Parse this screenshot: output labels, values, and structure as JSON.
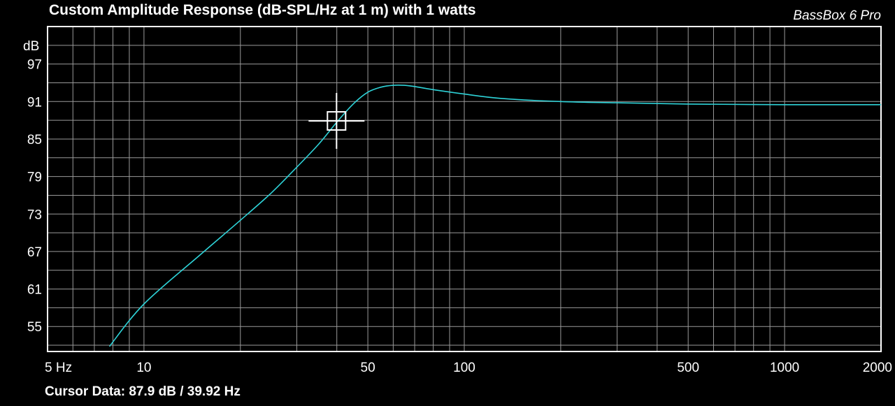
{
  "title": "Custom Amplitude Response (dB-SPL/Hz at 1 m) with 1 watts",
  "brand": "BassBox 6 Pro",
  "cursor_label": "Cursor Data:",
  "cursor_value": "87.9 dB / 39.92 Hz",
  "colors": {
    "background": "#000000",
    "grid": "#9a9a9a",
    "frame": "#ffffff",
    "curve": "#2ed3d8",
    "cursor": "#ffffff"
  },
  "chart_data": {
    "type": "line",
    "title": "Custom Amplitude Response (dB-SPL/Hz at 1 m) with 1 watts",
    "xlabel": "",
    "ylabel": "dB",
    "x_scale": "log",
    "xlim": [
      5,
      2000
    ],
    "ylim": [
      51,
      103
    ],
    "grid": true,
    "x_tick_labels": [
      {
        "value": 5,
        "label": "5 Hz"
      },
      {
        "value": 10,
        "label": "10"
      },
      {
        "value": 50,
        "label": "50"
      },
      {
        "value": 100,
        "label": "100"
      },
      {
        "value": 500,
        "label": "500"
      },
      {
        "value": 1000,
        "label": "1000"
      },
      {
        "value": 2000,
        "label": "2000"
      }
    ],
    "y_tick_labels": [
      {
        "value": 97,
        "label": "97"
      },
      {
        "value": 91,
        "label": "91"
      },
      {
        "value": 85,
        "label": "85"
      },
      {
        "value": 79,
        "label": "79"
      },
      {
        "value": 73,
        "label": "73"
      },
      {
        "value": 67,
        "label": "67"
      },
      {
        "value": 61,
        "label": "61"
      },
      {
        "value": 55,
        "label": "55"
      }
    ],
    "series": [
      {
        "x": [
          7.8,
          10,
          15,
          20,
          25,
          30,
          35,
          40,
          45,
          50,
          55,
          60,
          65,
          70,
          80,
          100,
          130,
          200,
          300,
          500,
          1000,
          2000
        ],
        "y": [
          51.8,
          58.6,
          66.5,
          72.0,
          76.4,
          80.5,
          84.1,
          87.7,
          90.6,
          92.5,
          93.3,
          93.6,
          93.6,
          93.4,
          92.9,
          92.2,
          91.5,
          91.0,
          90.8,
          90.6,
          90.5,
          90.5
        ]
      }
    ],
    "cursor": {
      "x": 39.92,
      "y": 87.9
    }
  }
}
